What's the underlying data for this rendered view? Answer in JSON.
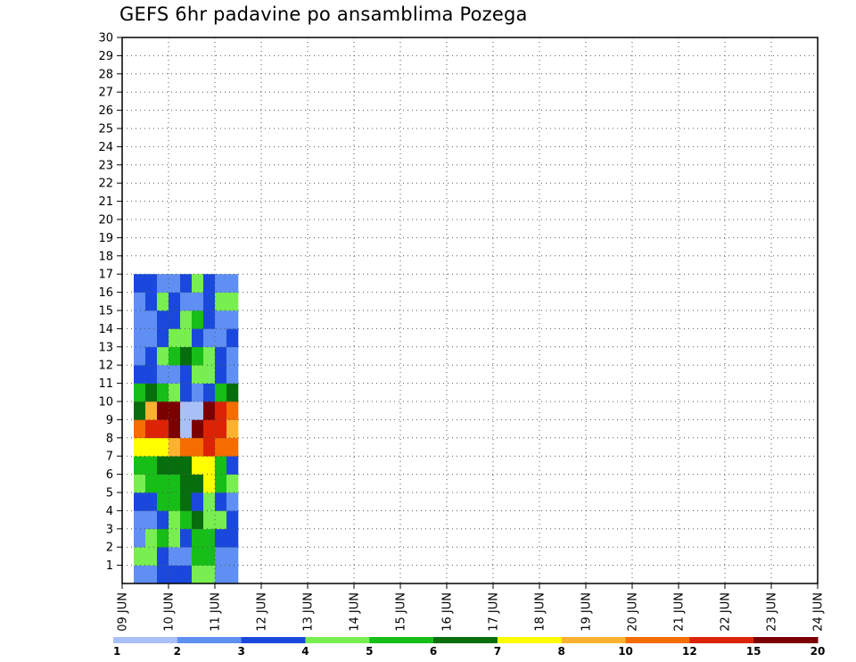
{
  "chart_data": {
    "type": "heatmap",
    "title": "GEFS 6hr padavine po ansamblima Pozega",
    "x_tick_labels": [
      "09 JUN",
      "10 JUN",
      "11 JUN",
      "12 JUN",
      "13 JUN",
      "14 JUN",
      "15 JUN",
      "16 JUN",
      "17 JUN",
      "18 JUN",
      "19 JUN",
      "20 JUN",
      "21 JUN",
      "22 JUN",
      "23 JUN",
      "24 JUN"
    ],
    "y_tick_labels": [
      "1",
      "2",
      "3",
      "4",
      "5",
      "6",
      "7",
      "8",
      "9",
      "10",
      "11",
      "12",
      "13",
      "14",
      "15",
      "16",
      "17",
      "18",
      "19",
      "20",
      "21",
      "22",
      "23",
      "24",
      "25",
      "26",
      "27",
      "28",
      "29",
      "30"
    ],
    "xlim": [
      0,
      60
    ],
    "ylim": [
      0,
      30
    ],
    "grid": true,
    "colorbar_labels": [
      "1",
      "2",
      "3",
      "4",
      "5",
      "6",
      "7",
      "8",
      "10",
      "12",
      "15",
      "20"
    ],
    "colorbar_colors": [
      "#a9c0f7",
      "#5f8ff2",
      "#1a48dc",
      "#78ee50",
      "#17be17",
      "#066e0d",
      "#ffff00",
      "#fcb231",
      "#f56c00",
      "#dc2306",
      "#7b0000"
    ],
    "cells": [
      [
        1,
        0,
        1
      ],
      [
        2,
        0,
        1
      ],
      [
        3,
        0,
        2
      ],
      [
        4,
        0,
        2
      ],
      [
        5,
        0,
        2
      ],
      [
        6,
        0,
        3
      ],
      [
        7,
        0,
        3
      ],
      [
        8,
        0,
        1
      ],
      [
        9,
        0,
        1
      ],
      [
        1,
        1,
        3
      ],
      [
        2,
        1,
        3
      ],
      [
        3,
        1,
        2
      ],
      [
        4,
        1,
        1
      ],
      [
        5,
        1,
        1
      ],
      [
        6,
        1,
        4
      ],
      [
        7,
        1,
        4
      ],
      [
        8,
        1,
        1
      ],
      [
        9,
        1,
        1
      ],
      [
        1,
        2,
        1
      ],
      [
        2,
        2,
        3
      ],
      [
        3,
        2,
        4
      ],
      [
        4,
        2,
        3
      ],
      [
        5,
        2,
        2
      ],
      [
        6,
        2,
        4
      ],
      [
        7,
        2,
        4
      ],
      [
        8,
        2,
        2
      ],
      [
        9,
        2,
        2
      ],
      [
        1,
        3,
        1
      ],
      [
        2,
        3,
        1
      ],
      [
        3,
        3,
        2
      ],
      [
        4,
        3,
        3
      ],
      [
        5,
        3,
        4
      ],
      [
        6,
        3,
        5
      ],
      [
        7,
        3,
        3
      ],
      [
        8,
        3,
        3
      ],
      [
        9,
        3,
        2
      ],
      [
        1,
        4,
        2
      ],
      [
        2,
        4,
        2
      ],
      [
        3,
        4,
        4
      ],
      [
        4,
        4,
        4
      ],
      [
        5,
        4,
        5
      ],
      [
        6,
        4,
        2
      ],
      [
        7,
        4,
        3
      ],
      [
        8,
        4,
        2
      ],
      [
        9,
        4,
        1
      ],
      [
        1,
        5,
        3
      ],
      [
        2,
        5,
        4
      ],
      [
        3,
        5,
        4
      ],
      [
        4,
        5,
        4
      ],
      [
        5,
        5,
        5
      ],
      [
        6,
        5,
        5
      ],
      [
        7,
        5,
        6
      ],
      [
        8,
        5,
        4
      ],
      [
        9,
        5,
        3
      ],
      [
        1,
        6,
        4
      ],
      [
        2,
        6,
        4
      ],
      [
        3,
        6,
        5
      ],
      [
        4,
        6,
        5
      ],
      [
        5,
        6,
        5
      ],
      [
        6,
        6,
        6
      ],
      [
        7,
        6,
        6
      ],
      [
        8,
        6,
        4
      ],
      [
        9,
        6,
        2
      ],
      [
        1,
        7,
        6
      ],
      [
        2,
        7,
        6
      ],
      [
        3,
        7,
        6
      ],
      [
        4,
        7,
        7
      ],
      [
        5,
        7,
        8
      ],
      [
        6,
        7,
        8
      ],
      [
        7,
        7,
        9
      ],
      [
        8,
        7,
        8
      ],
      [
        9,
        7,
        8
      ],
      [
        1,
        8,
        8
      ],
      [
        2,
        8,
        9
      ],
      [
        3,
        8,
        9
      ],
      [
        4,
        8,
        10
      ],
      [
        5,
        8,
        11
      ],
      [
        6,
        8,
        10
      ],
      [
        7,
        8,
        9
      ],
      [
        8,
        8,
        9
      ],
      [
        9,
        8,
        7
      ],
      [
        1,
        9,
        5
      ],
      [
        2,
        9,
        7
      ],
      [
        3,
        9,
        10
      ],
      [
        4,
        9,
        10
      ],
      [
        5,
        9,
        11
      ],
      [
        6,
        9,
        11
      ],
      [
        7,
        9,
        10
      ],
      [
        8,
        9,
        9
      ],
      [
        9,
        9,
        8
      ],
      [
        1,
        10,
        4
      ],
      [
        2,
        10,
        5
      ],
      [
        3,
        10,
        4
      ],
      [
        4,
        10,
        3
      ],
      [
        5,
        10,
        2
      ],
      [
        6,
        10,
        1
      ],
      [
        7,
        10,
        2
      ],
      [
        8,
        10,
        4
      ],
      [
        9,
        10,
        5
      ],
      [
        1,
        11,
        2
      ],
      [
        2,
        11,
        2
      ],
      [
        3,
        11,
        1
      ],
      [
        4,
        11,
        1
      ],
      [
        5,
        11,
        2
      ],
      [
        6,
        11,
        3
      ],
      [
        7,
        11,
        3
      ],
      [
        8,
        11,
        2
      ],
      [
        9,
        11,
        1
      ],
      [
        1,
        12,
        1
      ],
      [
        2,
        12,
        2
      ],
      [
        3,
        12,
        3
      ],
      [
        4,
        12,
        4
      ],
      [
        5,
        12,
        5
      ],
      [
        6,
        12,
        4
      ],
      [
        7,
        12,
        3
      ],
      [
        8,
        12,
        2
      ],
      [
        9,
        12,
        1
      ],
      [
        1,
        13,
        1
      ],
      [
        2,
        13,
        1
      ],
      [
        3,
        13,
        2
      ],
      [
        4,
        13,
        3
      ],
      [
        5,
        13,
        3
      ],
      [
        6,
        13,
        2
      ],
      [
        7,
        13,
        1
      ],
      [
        8,
        13,
        1
      ],
      [
        9,
        13,
        2
      ],
      [
        1,
        14,
        1
      ],
      [
        2,
        14,
        1
      ],
      [
        3,
        14,
        2
      ],
      [
        4,
        14,
        2
      ],
      [
        5,
        14,
        3
      ],
      [
        6,
        14,
        4
      ],
      [
        7,
        14,
        2
      ],
      [
        8,
        14,
        1
      ],
      [
        9,
        14,
        1
      ],
      [
        1,
        15,
        1
      ],
      [
        2,
        15,
        2
      ],
      [
        3,
        15,
        3
      ],
      [
        4,
        15,
        2
      ],
      [
        5,
        15,
        1
      ],
      [
        6,
        15,
        1
      ],
      [
        7,
        15,
        2
      ],
      [
        8,
        15,
        3
      ],
      [
        9,
        15,
        3
      ],
      [
        1,
        16,
        2
      ],
      [
        2,
        16,
        2
      ],
      [
        3,
        16,
        1
      ],
      [
        4,
        16,
        1
      ],
      [
        5,
        16,
        2
      ],
      [
        6,
        16,
        3
      ],
      [
        7,
        16,
        2
      ],
      [
        8,
        16,
        1
      ],
      [
        9,
        16,
        1
      ]
    ]
  }
}
